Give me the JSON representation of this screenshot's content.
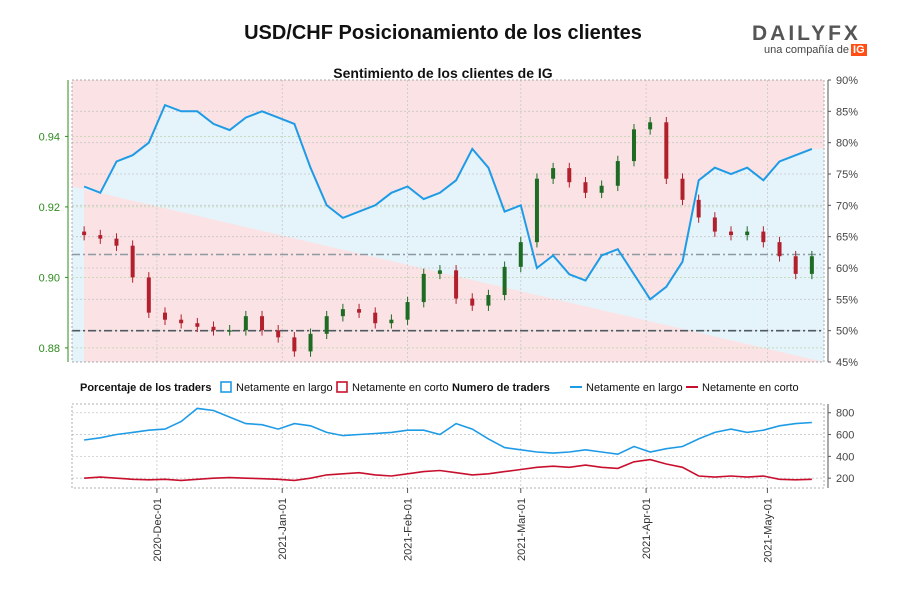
{
  "title": "USD/CHF Posicionamiento de los clientes",
  "logo": {
    "brand": "DAILYFX",
    "tagline": "una compañía de",
    "ig": "IG"
  },
  "colors": {
    "long": "#1f9be6",
    "short": "#c8102e",
    "bull": "#1e6b23",
    "bear": "#b21f2d",
    "shortZone": "#fbe3e5",
    "longZone": "#e5f3fb",
    "priceAxis": "#2e8b1e"
  },
  "chart_data": [
    {
      "type": "candlestick+line",
      "title": "Sentimiento de los clientes de IG",
      "x_ticks": [
        "2020-Dec-01",
        "2021-Jan-01",
        "2021-Feb-01",
        "2021-Mar-01",
        "2021-Apr-01",
        "2021-May-01"
      ],
      "left_axis": {
        "ticks": [
          "0.88",
          "0.90",
          "0.92",
          "0.94"
        ],
        "ylim": [
          0.876,
          0.956
        ]
      },
      "right_axis": {
        "ticks": [
          "45%",
          "50%",
          "55%",
          "60%",
          "65%",
          "70%",
          "75%",
          "80%",
          "85%",
          "90%"
        ],
        "ylim": [
          45,
          90
        ]
      },
      "reference_lines": {
        "price": 0.9065,
        "percent": 50
      },
      "x_dates": [
        "2020-Nov-13",
        "2020-Nov-17",
        "2020-Nov-21",
        "2020-Nov-25",
        "2020-Nov-29",
        "2020-Dec-03",
        "2020-Dec-07",
        "2020-Dec-11",
        "2020-Dec-15",
        "2020-Dec-19",
        "2020-Dec-23",
        "2020-Dec-27",
        "2020-Dec-31",
        "2021-Jan-04",
        "2021-Jan-08",
        "2021-Jan-12",
        "2021-Jan-16",
        "2021-Jan-20",
        "2021-Jan-24",
        "2021-Jan-28",
        "2021-Feb-01",
        "2021-Feb-05",
        "2021-Feb-09",
        "2021-Feb-13",
        "2021-Feb-17",
        "2021-Feb-21",
        "2021-Feb-25",
        "2021-Mar-01",
        "2021-Mar-05",
        "2021-Mar-09",
        "2021-Mar-13",
        "2021-Mar-17",
        "2021-Mar-21",
        "2021-Mar-25",
        "2021-Mar-29",
        "2021-Apr-02",
        "2021-Apr-06",
        "2021-Apr-10",
        "2021-Apr-14",
        "2021-Apr-18",
        "2021-Apr-22",
        "2021-Apr-26",
        "2021-Apr-30",
        "2021-May-04",
        "2021-May-08",
        "2021-May-12"
      ],
      "price_close": [
        0.912,
        0.911,
        0.909,
        0.9,
        0.89,
        0.888,
        0.887,
        0.886,
        0.885,
        0.885,
        0.889,
        0.885,
        0.883,
        0.879,
        0.884,
        0.889,
        0.891,
        0.89,
        0.887,
        0.888,
        0.893,
        0.901,
        0.902,
        0.894,
        0.892,
        0.895,
        0.903,
        0.91,
        0.928,
        0.931,
        0.927,
        0.924,
        0.926,
        0.933,
        0.942,
        0.944,
        0.928,
        0.922,
        0.917,
        0.913,
        0.912,
        0.913,
        0.91,
        0.906,
        0.901,
        0.906
      ],
      "net_long_pct": [
        73,
        72,
        77,
        78,
        80,
        86,
        85,
        85,
        83,
        82,
        84,
        85,
        84,
        83,
        76,
        70,
        68,
        69,
        70,
        72,
        73,
        71,
        72,
        74,
        79,
        76,
        69,
        70,
        60,
        62,
        59,
        58,
        62,
        63,
        59,
        55,
        57,
        61,
        74,
        76,
        75,
        76,
        74,
        77,
        78,
        79
      ],
      "series": [
        {
          "name": "Netamente en largo"
        },
        {
          "name": "Netamente en corto"
        }
      ]
    },
    {
      "type": "line",
      "left_legend_title": "Porcentaje de los traders",
      "right_legend_title": "Numero de traders",
      "y_ticks": [
        "200",
        "400",
        "600",
        "800"
      ],
      "ylim": [
        110,
        880
      ],
      "x": [
        "2020-Nov-13",
        "2020-Nov-17",
        "2020-Nov-21",
        "2020-Nov-25",
        "2020-Nov-29",
        "2020-Dec-03",
        "2020-Dec-07",
        "2020-Dec-11",
        "2020-Dec-15",
        "2020-Dec-19",
        "2020-Dec-23",
        "2020-Dec-27",
        "2020-Dec-31",
        "2021-Jan-04",
        "2021-Jan-08",
        "2021-Jan-12",
        "2021-Jan-16",
        "2021-Jan-20",
        "2021-Jan-24",
        "2021-Jan-28",
        "2021-Feb-01",
        "2021-Feb-05",
        "2021-Feb-09",
        "2021-Feb-13",
        "2021-Feb-17",
        "2021-Feb-21",
        "2021-Feb-25",
        "2021-Mar-01",
        "2021-Mar-05",
        "2021-Mar-09",
        "2021-Mar-13",
        "2021-Mar-17",
        "2021-Mar-21",
        "2021-Mar-25",
        "2021-Mar-29",
        "2021-Apr-02",
        "2021-Apr-06",
        "2021-Apr-10",
        "2021-Apr-14",
        "2021-Apr-18",
        "2021-Apr-22",
        "2021-Apr-26",
        "2021-Apr-30",
        "2021-May-04",
        "2021-May-08",
        "2021-May-12"
      ],
      "series": [
        {
          "name": "Netamente en largo",
          "values": [
            550,
            570,
            600,
            620,
            640,
            650,
            720,
            840,
            820,
            760,
            700,
            690,
            650,
            700,
            680,
            620,
            590,
            600,
            610,
            620,
            640,
            640,
            600,
            700,
            650,
            560,
            480,
            460,
            440,
            430,
            440,
            460,
            440,
            420,
            490,
            440,
            470,
            490,
            560,
            620,
            650,
            620,
            640,
            680,
            700,
            710
          ]
        },
        {
          "name": "Netamente en corto",
          "values": [
            200,
            210,
            200,
            190,
            185,
            190,
            180,
            190,
            200,
            205,
            200,
            195,
            190,
            180,
            200,
            230,
            240,
            250,
            230,
            220,
            240,
            260,
            270,
            250,
            230,
            240,
            260,
            280,
            300,
            310,
            300,
            320,
            300,
            290,
            350,
            370,
            330,
            300,
            220,
            210,
            220,
            210,
            220,
            190,
            185,
            190
          ]
        }
      ]
    }
  ]
}
